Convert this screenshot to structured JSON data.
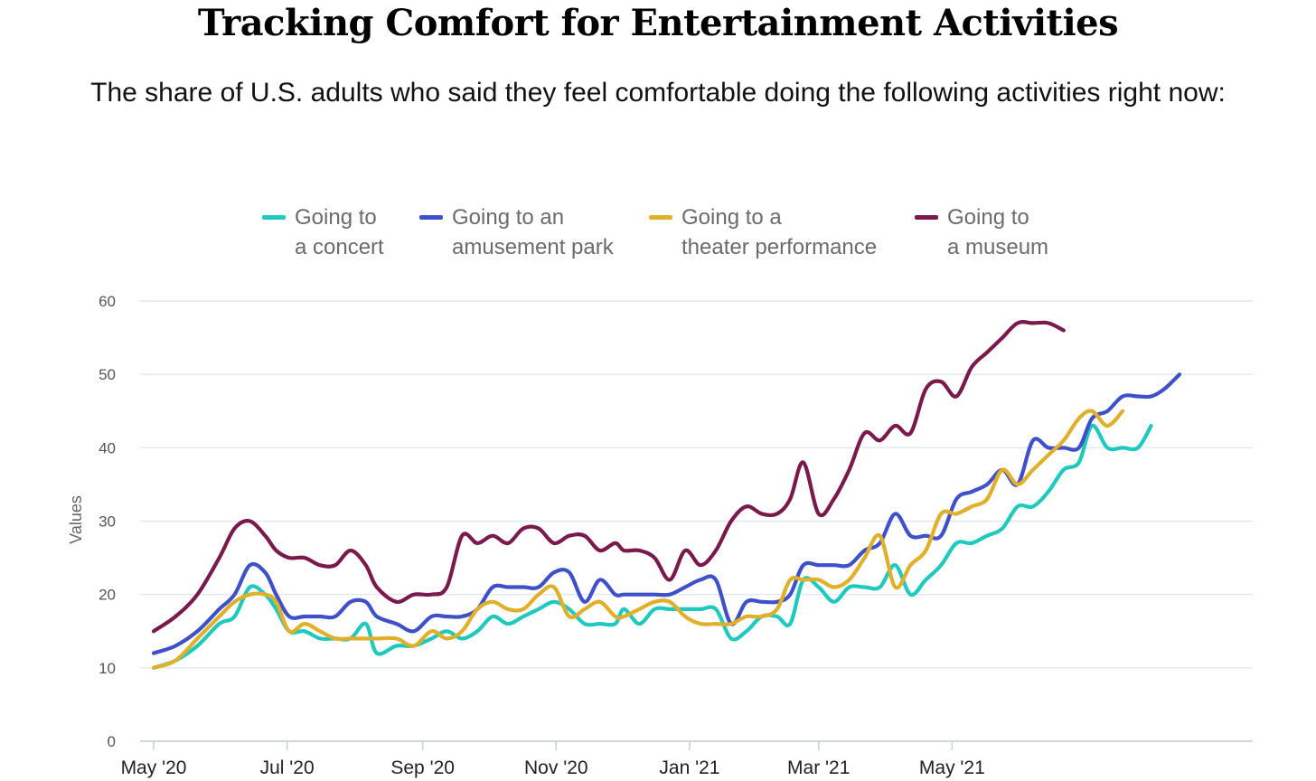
{
  "chart_data": {
    "type": "line",
    "title": "Tracking Comfort for Entertainment Activities",
    "subtitle": "The share of U.S. adults who said they feel comfortable doing the following activities right now:",
    "ylabel": "Values",
    "xlabel": "",
    "ylim": [
      0,
      60
    ],
    "yticks": [
      0,
      10,
      20,
      30,
      40,
      50,
      60
    ],
    "x_tick_labels": [
      "May '20",
      "Jul '20",
      "Sep '20",
      "Nov '20",
      "Jan '21",
      "Mar '21",
      "May '21"
    ],
    "grid": true,
    "legend_position": "top",
    "x_start": "2020-05-01",
    "x_end": "2021-07-13",
    "series": [
      {
        "name": "Going to\na concert",
        "color": "#1fc9be",
        "points": [
          [
            "2020-05-01",
            10
          ],
          [
            "2020-05-11",
            11
          ],
          [
            "2020-05-21",
            13
          ],
          [
            "2020-05-31",
            16
          ],
          [
            "2020-06-07",
            17
          ],
          [
            "2020-06-14",
            21
          ],
          [
            "2020-06-21",
            20
          ],
          [
            "2020-06-26",
            18
          ],
          [
            "2020-07-02",
            15
          ],
          [
            "2020-07-09",
            15
          ],
          [
            "2020-07-16",
            14
          ],
          [
            "2020-07-23",
            14
          ],
          [
            "2020-07-30",
            14
          ],
          [
            "2020-08-06",
            16
          ],
          [
            "2020-08-11",
            12
          ],
          [
            "2020-08-20",
            13
          ],
          [
            "2020-08-28",
            13
          ],
          [
            "2020-09-05",
            14
          ],
          [
            "2020-09-12",
            15
          ],
          [
            "2020-09-19",
            14
          ],
          [
            "2020-09-26",
            15
          ],
          [
            "2020-10-03",
            17
          ],
          [
            "2020-10-10",
            16
          ],
          [
            "2020-10-17",
            17
          ],
          [
            "2020-10-24",
            18
          ],
          [
            "2020-10-31",
            19
          ],
          [
            "2020-11-07",
            18
          ],
          [
            "2020-11-14",
            16
          ],
          [
            "2020-11-21",
            16
          ],
          [
            "2020-11-28",
            16
          ],
          [
            "2020-12-02",
            18
          ],
          [
            "2020-12-09",
            16
          ],
          [
            "2020-12-16",
            18
          ],
          [
            "2020-12-23",
            18
          ],
          [
            "2020-12-30",
            18
          ],
          [
            "2021-01-06",
            18
          ],
          [
            "2021-01-13",
            18
          ],
          [
            "2021-01-20",
            14
          ],
          [
            "2021-01-27",
            15
          ],
          [
            "2021-02-03",
            17
          ],
          [
            "2021-02-10",
            17
          ],
          [
            "2021-02-16",
            16
          ],
          [
            "2021-02-22",
            22
          ],
          [
            "2021-03-01",
            21
          ],
          [
            "2021-03-08",
            19
          ],
          [
            "2021-03-15",
            21
          ],
          [
            "2021-03-22",
            21
          ],
          [
            "2021-03-29",
            21
          ],
          [
            "2021-04-05",
            24
          ],
          [
            "2021-04-12",
            20
          ],
          [
            "2021-04-19",
            22
          ],
          [
            "2021-04-26",
            24
          ],
          [
            "2021-05-03",
            27
          ],
          [
            "2021-05-10",
            27
          ],
          [
            "2021-05-17",
            28
          ],
          [
            "2021-05-24",
            29
          ],
          [
            "2021-05-31",
            32
          ],
          [
            "2021-06-07",
            32
          ],
          [
            "2021-06-14",
            34
          ],
          [
            "2021-06-21",
            37
          ],
          [
            "2021-06-28",
            38
          ],
          [
            "2021-07-04",
            43
          ],
          [
            "2021-07-11",
            40
          ],
          [
            "2021-07-18",
            40
          ],
          [
            "2021-07-25",
            40
          ],
          [
            "2021-07-31",
            43
          ]
        ]
      },
      {
        "name": "Going to an\namusement park",
        "color": "#3f51c8",
        "points": [
          [
            "2020-05-01",
            12
          ],
          [
            "2020-05-11",
            13
          ],
          [
            "2020-05-21",
            15
          ],
          [
            "2020-05-31",
            18
          ],
          [
            "2020-06-07",
            20
          ],
          [
            "2020-06-14",
            24
          ],
          [
            "2020-06-21",
            23
          ],
          [
            "2020-06-26",
            20
          ],
          [
            "2020-07-02",
            17
          ],
          [
            "2020-07-09",
            17
          ],
          [
            "2020-07-16",
            17
          ],
          [
            "2020-07-23",
            17
          ],
          [
            "2020-07-30",
            19
          ],
          [
            "2020-08-06",
            19
          ],
          [
            "2020-08-11",
            17
          ],
          [
            "2020-08-20",
            16
          ],
          [
            "2020-08-28",
            15
          ],
          [
            "2020-09-05",
            17
          ],
          [
            "2020-09-12",
            17
          ],
          [
            "2020-09-19",
            17
          ],
          [
            "2020-09-26",
            18
          ],
          [
            "2020-10-03",
            21
          ],
          [
            "2020-10-10",
            21
          ],
          [
            "2020-10-17",
            21
          ],
          [
            "2020-10-24",
            21
          ],
          [
            "2020-10-31",
            23
          ],
          [
            "2020-11-07",
            23
          ],
          [
            "2020-11-14",
            19
          ],
          [
            "2020-11-21",
            22
          ],
          [
            "2020-11-28",
            20
          ],
          [
            "2020-12-02",
            20
          ],
          [
            "2020-12-09",
            20
          ],
          [
            "2020-12-16",
            20
          ],
          [
            "2020-12-23",
            20
          ],
          [
            "2020-12-30",
            21
          ],
          [
            "2021-01-06",
            22
          ],
          [
            "2021-01-13",
            22
          ],
          [
            "2021-01-20",
            16
          ],
          [
            "2021-01-27",
            19
          ],
          [
            "2021-02-03",
            19
          ],
          [
            "2021-02-10",
            19
          ],
          [
            "2021-02-16",
            20
          ],
          [
            "2021-02-22",
            24
          ],
          [
            "2021-03-01",
            24
          ],
          [
            "2021-03-08",
            24
          ],
          [
            "2021-03-15",
            24
          ],
          [
            "2021-03-22",
            26
          ],
          [
            "2021-03-29",
            27
          ],
          [
            "2021-04-05",
            31
          ],
          [
            "2021-04-12",
            28
          ],
          [
            "2021-04-19",
            28
          ],
          [
            "2021-04-26",
            28
          ],
          [
            "2021-05-03",
            33
          ],
          [
            "2021-05-10",
            34
          ],
          [
            "2021-05-17",
            35
          ],
          [
            "2021-05-24",
            37
          ],
          [
            "2021-05-31",
            35
          ],
          [
            "2021-06-07",
            41
          ],
          [
            "2021-06-14",
            40
          ],
          [
            "2021-06-21",
            40
          ],
          [
            "2021-06-28",
            40
          ],
          [
            "2021-07-04",
            44
          ],
          [
            "2021-07-11",
            45
          ],
          [
            "2021-07-18",
            47
          ],
          [
            "2021-07-25",
            47
          ],
          [
            "2021-07-31",
            47
          ],
          [
            "2021-08-06",
            48
          ],
          [
            "2021-08-13",
            50
          ]
        ]
      },
      {
        "name": "Going to a\ntheater performance",
        "color": "#e0b02a",
        "points": [
          [
            "2020-05-01",
            10
          ],
          [
            "2020-05-11",
            11
          ],
          [
            "2020-05-21",
            14
          ],
          [
            "2020-05-31",
            17
          ],
          [
            "2020-06-07",
            19
          ],
          [
            "2020-06-14",
            20
          ],
          [
            "2020-06-21",
            20
          ],
          [
            "2020-06-26",
            19
          ],
          [
            "2020-07-02",
            15
          ],
          [
            "2020-07-09",
            16
          ],
          [
            "2020-07-16",
            15
          ],
          [
            "2020-07-23",
            14
          ],
          [
            "2020-07-30",
            14
          ],
          [
            "2020-08-06",
            14
          ],
          [
            "2020-08-11",
            14
          ],
          [
            "2020-08-20",
            14
          ],
          [
            "2020-08-28",
            13
          ],
          [
            "2020-09-05",
            15
          ],
          [
            "2020-09-12",
            14
          ],
          [
            "2020-09-19",
            15
          ],
          [
            "2020-09-26",
            18
          ],
          [
            "2020-10-03",
            19
          ],
          [
            "2020-10-10",
            18
          ],
          [
            "2020-10-17",
            18
          ],
          [
            "2020-10-24",
            20
          ],
          [
            "2020-10-31",
            21
          ],
          [
            "2020-11-07",
            17
          ],
          [
            "2020-11-14",
            18
          ],
          [
            "2020-11-21",
            19
          ],
          [
            "2020-11-28",
            17
          ],
          [
            "2020-12-02",
            17
          ],
          [
            "2020-12-09",
            18
          ],
          [
            "2020-12-16",
            19
          ],
          [
            "2020-12-23",
            19
          ],
          [
            "2020-12-30",
            17
          ],
          [
            "2021-01-06",
            16
          ],
          [
            "2021-01-13",
            16
          ],
          [
            "2021-01-20",
            16
          ],
          [
            "2021-01-27",
            17
          ],
          [
            "2021-02-03",
            17
          ],
          [
            "2021-02-10",
            18
          ],
          [
            "2021-02-16",
            22
          ],
          [
            "2021-02-22",
            22
          ],
          [
            "2021-03-01",
            22
          ],
          [
            "2021-03-08",
            21
          ],
          [
            "2021-03-15",
            22
          ],
          [
            "2021-03-22",
            25
          ],
          [
            "2021-03-29",
            28
          ],
          [
            "2021-04-05",
            21
          ],
          [
            "2021-04-12",
            24
          ],
          [
            "2021-04-19",
            26
          ],
          [
            "2021-04-26",
            31
          ],
          [
            "2021-05-03",
            31
          ],
          [
            "2021-05-10",
            32
          ],
          [
            "2021-05-17",
            33
          ],
          [
            "2021-05-24",
            37
          ],
          [
            "2021-05-31",
            35
          ],
          [
            "2021-06-07",
            37
          ],
          [
            "2021-06-14",
            39
          ],
          [
            "2021-06-21",
            41
          ],
          [
            "2021-06-28",
            44
          ],
          [
            "2021-07-04",
            45
          ],
          [
            "2021-07-11",
            43
          ],
          [
            "2021-07-18",
            45
          ]
        ]
      },
      {
        "name": "Going to\na museum",
        "color": "#7a1a4c",
        "points": [
          [
            "2020-05-01",
            15
          ],
          [
            "2020-05-11",
            17
          ],
          [
            "2020-05-21",
            20
          ],
          [
            "2020-05-31",
            25
          ],
          [
            "2020-06-07",
            29
          ],
          [
            "2020-06-14",
            30
          ],
          [
            "2020-06-21",
            28
          ],
          [
            "2020-06-26",
            26
          ],
          [
            "2020-07-02",
            25
          ],
          [
            "2020-07-09",
            25
          ],
          [
            "2020-07-16",
            24
          ],
          [
            "2020-07-23",
            24
          ],
          [
            "2020-07-30",
            26
          ],
          [
            "2020-08-06",
            24
          ],
          [
            "2020-08-11",
            21
          ],
          [
            "2020-08-20",
            19
          ],
          [
            "2020-08-28",
            20
          ],
          [
            "2020-09-05",
            20
          ],
          [
            "2020-09-12",
            21
          ],
          [
            "2020-09-19",
            28
          ],
          [
            "2020-09-26",
            27
          ],
          [
            "2020-10-03",
            28
          ],
          [
            "2020-10-10",
            27
          ],
          [
            "2020-10-17",
            29
          ],
          [
            "2020-10-24",
            29
          ],
          [
            "2020-10-31",
            27
          ],
          [
            "2020-11-07",
            28
          ],
          [
            "2020-11-14",
            28
          ],
          [
            "2020-11-21",
            26
          ],
          [
            "2020-11-28",
            27
          ],
          [
            "2020-12-02",
            26
          ],
          [
            "2020-12-09",
            26
          ],
          [
            "2020-12-16",
            25
          ],
          [
            "2020-12-23",
            22
          ],
          [
            "2020-12-30",
            26
          ],
          [
            "2021-01-06",
            24
          ],
          [
            "2021-01-13",
            26
          ],
          [
            "2021-01-20",
            30
          ],
          [
            "2021-01-27",
            32
          ],
          [
            "2021-02-03",
            31
          ],
          [
            "2021-02-10",
            31
          ],
          [
            "2021-02-16",
            33
          ],
          [
            "2021-02-22",
            38
          ],
          [
            "2021-03-01",
            31
          ],
          [
            "2021-03-08",
            33
          ],
          [
            "2021-03-15",
            37
          ],
          [
            "2021-03-22",
            42
          ],
          [
            "2021-03-29",
            41
          ],
          [
            "2021-04-05",
            43
          ],
          [
            "2021-04-12",
            42
          ],
          [
            "2021-04-19",
            48
          ],
          [
            "2021-04-26",
            49
          ],
          [
            "2021-05-03",
            47
          ],
          [
            "2021-05-10",
            51
          ],
          [
            "2021-05-17",
            53
          ],
          [
            "2021-05-24",
            55
          ],
          [
            "2021-05-31",
            57
          ],
          [
            "2021-06-07",
            57
          ],
          [
            "2021-06-14",
            57
          ],
          [
            "2021-06-21",
            56
          ]
        ]
      }
    ]
  }
}
